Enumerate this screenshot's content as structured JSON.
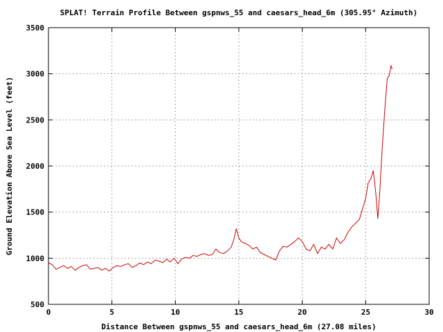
{
  "chart_data": {
    "type": "line",
    "title": "SPLAT! Terrain Profile Between gspnws_55 and caesars_head_6m (305.95° Azimuth)",
    "xlabel": "Distance Between gspnws_55 and caesars_head_6m (27.08 miles)",
    "ylabel": "Ground Elevation Above Sea Level (feet)",
    "xlim": [
      0,
      30
    ],
    "ylim": [
      500,
      3500
    ],
    "xticks": [
      0,
      5,
      10,
      15,
      20,
      25,
      30
    ],
    "yticks": [
      500,
      1000,
      1500,
      2000,
      2500,
      3000,
      3500
    ],
    "grid": true,
    "series": [
      {
        "color": "#cc0000",
        "x": [
          0,
          0.3,
          0.6,
          0.9,
          1.2,
          1.5,
          1.8,
          2.1,
          2.4,
          2.7,
          3.0,
          3.3,
          3.6,
          3.9,
          4.2,
          4.5,
          4.8,
          5.1,
          5.4,
          5.7,
          6.0,
          6.3,
          6.6,
          6.9,
          7.2,
          7.5,
          7.8,
          8.1,
          8.4,
          8.7,
          9.0,
          9.3,
          9.6,
          9.9,
          10.2,
          10.5,
          10.8,
          11.1,
          11.4,
          11.7,
          12.0,
          12.3,
          12.6,
          12.9,
          13.2,
          13.5,
          13.8,
          14.1,
          14.4,
          14.6,
          14.8,
          15.0,
          15.2,
          15.5,
          15.8,
          16.1,
          16.4,
          16.7,
          17.0,
          17.3,
          17.6,
          17.9,
          18.2,
          18.5,
          18.8,
          19.1,
          19.4,
          19.7,
          20.0,
          20.3,
          20.6,
          20.9,
          21.2,
          21.5,
          21.8,
          22.1,
          22.4,
          22.7,
          23.0,
          23.3,
          23.6,
          23.9,
          24.2,
          24.5,
          24.8,
          25.0,
          25.2,
          25.4,
          25.6,
          25.8,
          25.95,
          26.1,
          26.3,
          26.5,
          26.7,
          26.85,
          27.0,
          27.08
        ],
        "y": [
          950,
          930,
          880,
          900,
          920,
          890,
          910,
          870,
          900,
          920,
          930,
          880,
          890,
          900,
          870,
          890,
          860,
          900,
          920,
          910,
          930,
          940,
          900,
          920,
          950,
          930,
          960,
          940,
          980,
          970,
          950,
          990,
          960,
          1000,
          940,
          990,
          1010,
          1000,
          1030,
          1020,
          1040,
          1050,
          1030,
          1040,
          1100,
          1060,
          1050,
          1080,
          1120,
          1200,
          1320,
          1220,
          1180,
          1160,
          1140,
          1100,
          1120,
          1060,
          1040,
          1020,
          1000,
          980,
          1080,
          1130,
          1120,
          1150,
          1180,
          1220,
          1180,
          1100,
          1080,
          1150,
          1050,
          1120,
          1100,
          1150,
          1100,
          1220,
          1160,
          1200,
          1280,
          1340,
          1380,
          1420,
          1560,
          1650,
          1820,
          1860,
          1950,
          1700,
          1430,
          1700,
          2200,
          2600,
          2950,
          2980,
          3090,
          3050
        ]
      }
    ]
  }
}
